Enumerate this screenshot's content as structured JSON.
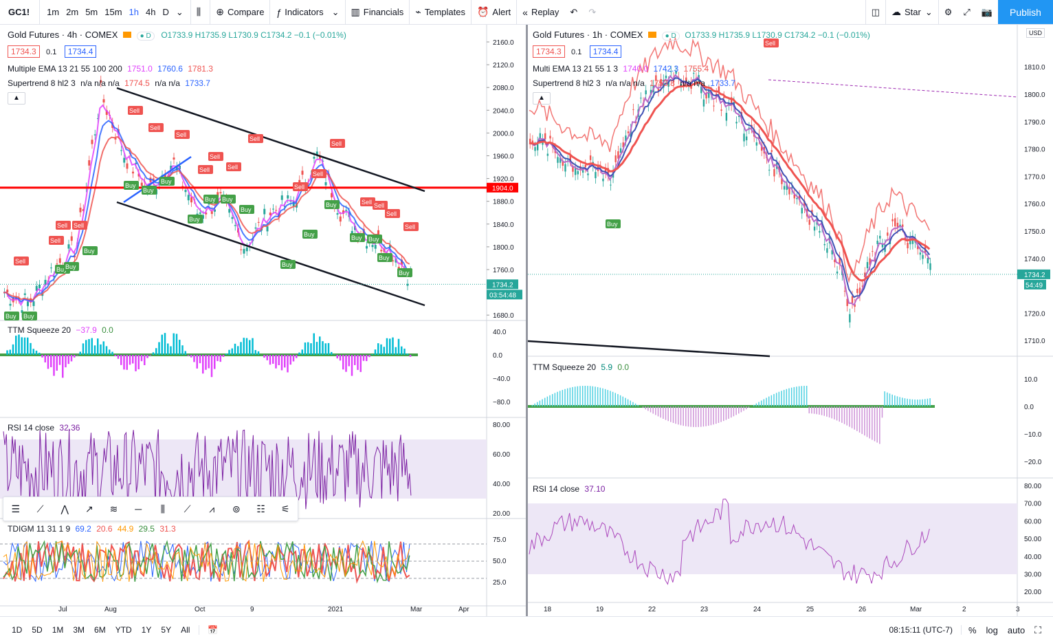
{
  "toolbar": {
    "symbol": "GC1!",
    "intervals": [
      "1m",
      "2m",
      "5m",
      "15m",
      "1h",
      "4h",
      "D"
    ],
    "active_interval": "1h",
    "compare": "Compare",
    "indicators": "Indicators",
    "financials": "Financials",
    "templates": "Templates",
    "alert": "Alert",
    "replay": "Replay",
    "star": "Star",
    "publish": "Publish"
  },
  "left": {
    "title": "Gold Futures · 4h · COMEX",
    "ohlc": "O1733.9 H1735.9 L1730.9 C1734.2 −0.1 (−0.01%)",
    "bid": "1734.3",
    "spread": "0.1",
    "ask": "1734.4",
    "ema_name": "Multiple EMA 13 21 55 100 200",
    "ema_vals": [
      "1751.0",
      "1760.6",
      "1781.3"
    ],
    "st_name": "Supertrend 8 hl2 3",
    "st_vals": "n/a n/a n/a",
    "st_v1": "1774.5",
    "st_vals2": "n/a n/a",
    "st_v2": "1733.7",
    "price_label": "1734.2",
    "countdown": "03:54:48",
    "hline_label": "1904.0",
    "price_ticks": [
      "2160.0",
      "2120.0",
      "2080.0",
      "2040.0",
      "2000.0",
      "1960.0",
      "1920.0",
      "1880.0",
      "1840.0",
      "1800.0",
      "1760.0",
      "1720.0",
      "1680.0"
    ],
    "ttm_name": "TTM Squeeze 20",
    "ttm_v1": "−37.9",
    "ttm_v2": "0.0",
    "ttm_ticks": [
      "40.0",
      "0.0",
      "−40.0",
      "−80.0"
    ],
    "rsi_name": "RSI 14 close",
    "rsi_val": "32.36",
    "rsi_ticks": [
      "80.00",
      "60.00",
      "40.00",
      "20.00"
    ],
    "tdi_name": "TDIGM 11 31 1 9",
    "tdi_vals": [
      "69.2",
      "20.6",
      "44.9",
      "29.5",
      "31.3"
    ],
    "tdi_ticks": [
      "75.0",
      "50.0",
      "25.0"
    ],
    "time_ticks": [
      "Jul",
      "Aug",
      "Oct",
      "9",
      "2021",
      "Mar",
      "Apr"
    ]
  },
  "right": {
    "title": "Gold Futures · 1h · COMEX",
    "ohlc": "O1733.9 H1735.9 L1730.9 C1734.2 −0.1 (−0.01%)",
    "bid": "1734.3",
    "spread": "0.1",
    "ask": "1734.4",
    "ema_name": "Multi EMA 13 21 55 1 3",
    "ema_vals": [
      "1740.0",
      "1742.3",
      "1755.4"
    ],
    "st_name": "Supertrend 8 hl2 3",
    "st_vals": "n/a n/a n/a",
    "st_v1": "1753.8",
    "st_vals2": "n/a n/a",
    "st_v2": "1733.7",
    "currency": "USD",
    "price_label": "1734.2",
    "countdown": "54:49",
    "price_ticks": [
      "1810.0",
      "1800.0",
      "1790.0",
      "1780.0",
      "1770.0",
      "1760.0",
      "1750.0",
      "1740.0",
      "1720.0",
      "1710.0"
    ],
    "ttm_name": "TTM Squeeze 20",
    "ttm_v1": "5.9",
    "ttm_v2": "0.0",
    "ttm_ticks": [
      "10.0",
      "0.0",
      "−10.0",
      "−20.0"
    ],
    "rsi_name": "RSI 14 close",
    "rsi_val": "37.10",
    "rsi_ticks": [
      "80.00",
      "70.00",
      "60.00",
      "50.00",
      "40.00",
      "30.00",
      "20.00"
    ],
    "time_ticks": [
      "18",
      "19",
      "22",
      "23",
      "24",
      "25",
      "26",
      "Mar",
      "2",
      "3"
    ]
  },
  "bottom": {
    "ranges": [
      "1D",
      "5D",
      "1M",
      "3M",
      "6M",
      "YTD",
      "1Y",
      "5Y",
      "All"
    ],
    "clock": "08:15:11 (UTC-7)",
    "pct": "%",
    "log": "log",
    "auto": "auto"
  },
  "colors": {
    "accent": "#2962ff",
    "up": "#26a69a",
    "down": "#ef5350",
    "hline": "#ff0000",
    "rsi_line": "#7b1fa2",
    "rsi_band": "#ede7f6",
    "ttm_pos": "#00bcd4",
    "ttm_neg": "#e040fb"
  }
}
